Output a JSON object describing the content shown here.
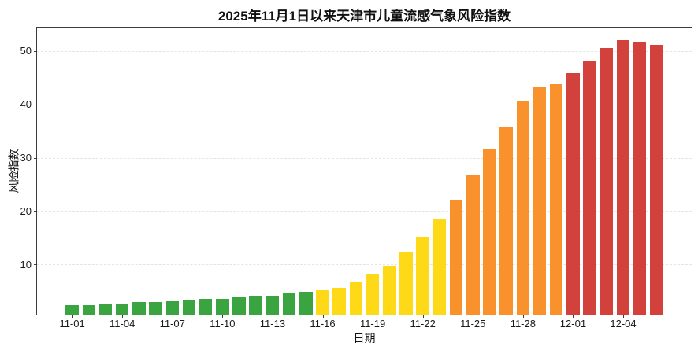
{
  "chart_data": {
    "type": "bar",
    "title": "2025年11月1日以来天津市儿童流感气象风险指数",
    "xlabel": "日期",
    "ylabel": "风险指数",
    "x": [
      "11-01",
      "11-02",
      "11-03",
      "11-04",
      "11-05",
      "11-06",
      "11-07",
      "11-08",
      "11-09",
      "11-10",
      "11-11",
      "11-12",
      "11-13",
      "11-14",
      "11-15",
      "11-16",
      "11-17",
      "11-18",
      "11-19",
      "11-20",
      "11-21",
      "11-22",
      "11-23",
      "11-24",
      "11-25",
      "11-26",
      "11-27",
      "11-28",
      "11-29",
      "11-30",
      "12-01",
      "12-02",
      "12-03",
      "12-04",
      "12-05",
      "12-06"
    ],
    "values": [
      2.3,
      2.4,
      2.5,
      2.7,
      2.9,
      3.0,
      3.1,
      3.3,
      3.5,
      3.6,
      3.8,
      4.0,
      4.1,
      4.7,
      4.9,
      5.2,
      5.6,
      6.8,
      8.2,
      9.8,
      12.4,
      15.2,
      18.4,
      22.1,
      26.7,
      31.6,
      35.8,
      40.6,
      43.2,
      43.8,
      45.8,
      48.1,
      50.6,
      52.0,
      51.6,
      51.2
    ],
    "bar_colors": [
      "#3AA540",
      "#3AA540",
      "#3AA540",
      "#3AA540",
      "#3AA540",
      "#3AA540",
      "#3AA540",
      "#3AA540",
      "#3AA540",
      "#3AA540",
      "#3AA540",
      "#3AA540",
      "#3AA540",
      "#3AA540",
      "#3AA540",
      "#FED917",
      "#FED917",
      "#FED917",
      "#FED917",
      "#FED917",
      "#FED917",
      "#FED917",
      "#FED917",
      "#F9912D",
      "#F9912D",
      "#F9912D",
      "#F9912D",
      "#F9912D",
      "#F9912D",
      "#F9912D",
      "#D2413C",
      "#D2413C",
      "#D2413C",
      "#D2413C",
      "#D2413C",
      "#D2413C"
    ],
    "risk_palette": {
      "low_green": "#3AA540",
      "medium_yellow": "#FED917",
      "high_orange": "#F9912D",
      "very_high_red": "#D2413C"
    },
    "yticks": [
      10,
      20,
      30,
      40,
      50
    ],
    "ylim": [
      0.6,
      54.4
    ],
    "xtick_indices": [
      0,
      3,
      6,
      9,
      12,
      15,
      18,
      21,
      24,
      27,
      30,
      33
    ],
    "xtick_labels": [
      "11-01",
      "11-04",
      "11-07",
      "11-10",
      "11-13",
      "11-16",
      "11-19",
      "11-22",
      "11-25",
      "11-28",
      "12-01",
      "12-04"
    ],
    "grid": "horizontal dashed",
    "legend": "none",
    "axis_color": "#3C3C3C",
    "grid_color": "#E4E4E4",
    "text_color": "#1A1A1A",
    "background_color": "#FFFFFF"
  }
}
